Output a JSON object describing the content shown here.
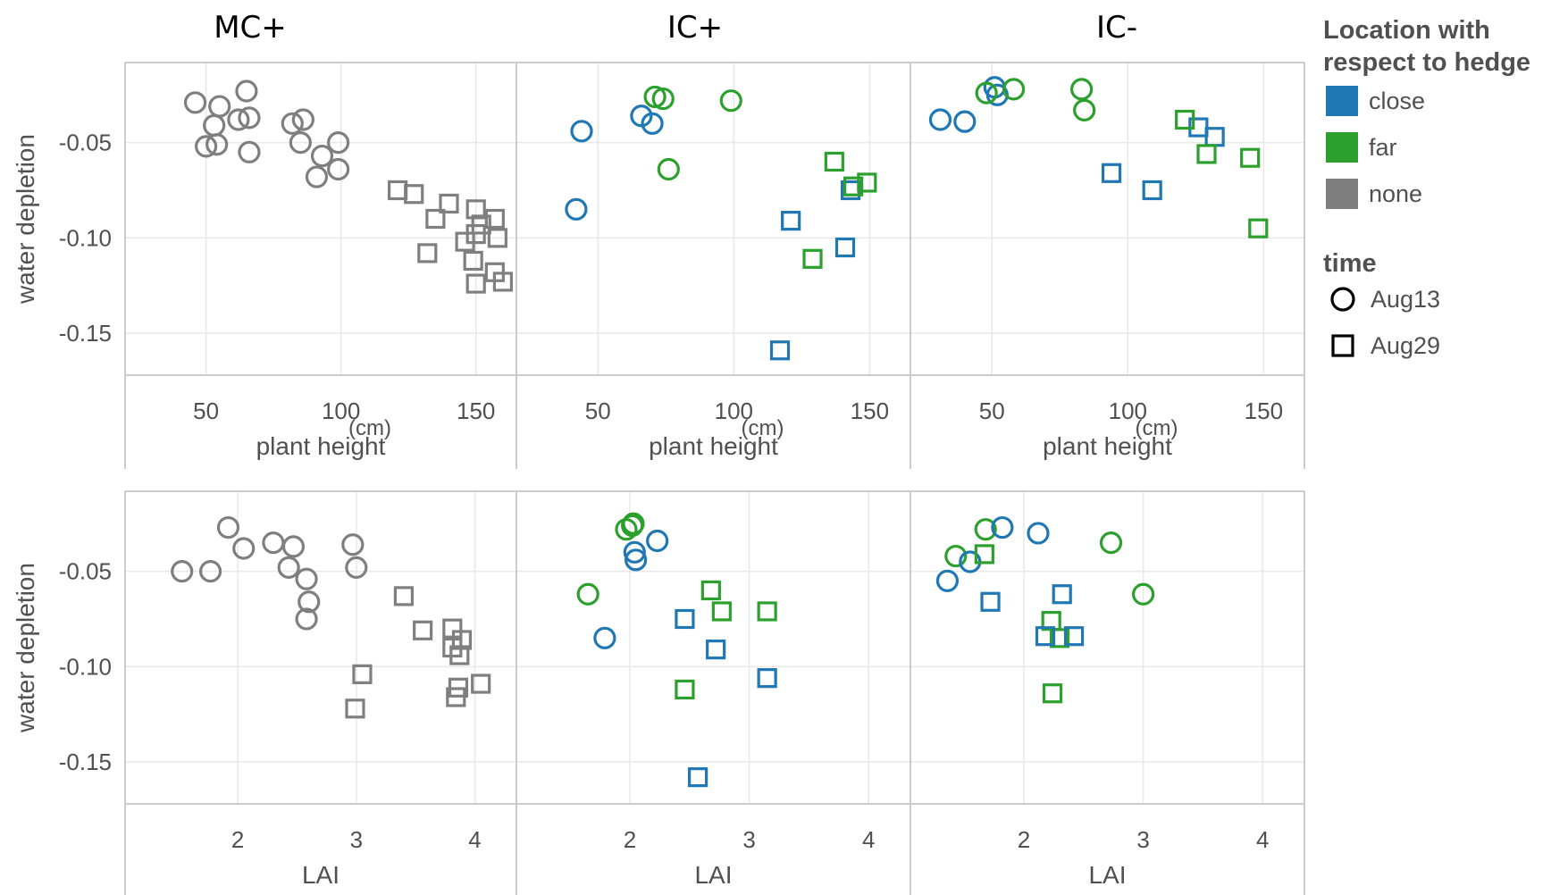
{
  "columns": [
    "MC+",
    "IC+",
    "IC-"
  ],
  "legend": {
    "location_title_line1": "Location with",
    "location_title_line2": "respect to hedge",
    "location_items": [
      {
        "label": "close",
        "color": "#1f77b4"
      },
      {
        "label": "far",
        "color": "#2ca02c"
      },
      {
        "label": "none",
        "color": "#7f7f7f"
      }
    ],
    "time_title": "time",
    "time_items": [
      {
        "label": "Aug13",
        "shape": "circle"
      },
      {
        "label": "Aug29",
        "shape": "square"
      }
    ]
  },
  "chart_data": [
    {
      "type": "scatter",
      "xlabel": "plant height",
      "xunit": "(cm)",
      "ylabel": "water depletion",
      "xlim": [
        20,
        165
      ],
      "ylim": [
        -0.172,
        -0.008
      ],
      "xticks": [
        50,
        100,
        150
      ],
      "yticks": [
        -0.05,
        -0.1,
        -0.15
      ],
      "ytick_labels": [
        "-0.05",
        "-0.10",
        "-0.15"
      ],
      "grid": true,
      "facets": [
        {
          "column": "MC+",
          "points": [
            {
              "x": 46,
              "y": -0.029,
              "loc": "none",
              "time": "Aug13"
            },
            {
              "x": 55,
              "y": -0.031,
              "loc": "none",
              "time": "Aug13"
            },
            {
              "x": 65,
              "y": -0.023,
              "loc": "none",
              "time": "Aug13"
            },
            {
              "x": 62,
              "y": -0.038,
              "loc": "none",
              "time": "Aug13"
            },
            {
              "x": 66,
              "y": -0.037,
              "loc": "none",
              "time": "Aug13"
            },
            {
              "x": 53,
              "y": -0.041,
              "loc": "none",
              "time": "Aug13"
            },
            {
              "x": 50,
              "y": -0.052,
              "loc": "none",
              "time": "Aug13"
            },
            {
              "x": 54,
              "y": -0.051,
              "loc": "none",
              "time": "Aug13"
            },
            {
              "x": 66,
              "y": -0.055,
              "loc": "none",
              "time": "Aug13"
            },
            {
              "x": 82,
              "y": -0.04,
              "loc": "none",
              "time": "Aug13"
            },
            {
              "x": 86,
              "y": -0.038,
              "loc": "none",
              "time": "Aug13"
            },
            {
              "x": 85,
              "y": -0.05,
              "loc": "none",
              "time": "Aug13"
            },
            {
              "x": 93,
              "y": -0.057,
              "loc": "none",
              "time": "Aug13"
            },
            {
              "x": 99,
              "y": -0.05,
              "loc": "none",
              "time": "Aug13"
            },
            {
              "x": 99,
              "y": -0.064,
              "loc": "none",
              "time": "Aug13"
            },
            {
              "x": 91,
              "y": -0.068,
              "loc": "none",
              "time": "Aug13"
            },
            {
              "x": 121,
              "y": -0.075,
              "loc": "none",
              "time": "Aug29"
            },
            {
              "x": 127,
              "y": -0.077,
              "loc": "none",
              "time": "Aug29"
            },
            {
              "x": 140,
              "y": -0.082,
              "loc": "none",
              "time": "Aug29"
            },
            {
              "x": 135,
              "y": -0.09,
              "loc": "none",
              "time": "Aug29"
            },
            {
              "x": 150,
              "y": -0.085,
              "loc": "none",
              "time": "Aug29"
            },
            {
              "x": 152,
              "y": -0.093,
              "loc": "none",
              "time": "Aug29"
            },
            {
              "x": 157,
              "y": -0.09,
              "loc": "none",
              "time": "Aug29"
            },
            {
              "x": 146,
              "y": -0.102,
              "loc": "none",
              "time": "Aug29"
            },
            {
              "x": 150,
              "y": -0.098,
              "loc": "none",
              "time": "Aug29"
            },
            {
              "x": 158,
              "y": -0.1,
              "loc": "none",
              "time": "Aug29"
            },
            {
              "x": 132,
              "y": -0.108,
              "loc": "none",
              "time": "Aug29"
            },
            {
              "x": 149,
              "y": -0.112,
              "loc": "none",
              "time": "Aug29"
            },
            {
              "x": 157,
              "y": -0.118,
              "loc": "none",
              "time": "Aug29"
            },
            {
              "x": 160,
              "y": -0.123,
              "loc": "none",
              "time": "Aug29"
            },
            {
              "x": 150,
              "y": -0.124,
              "loc": "none",
              "time": "Aug29"
            }
          ]
        },
        {
          "column": "IC+",
          "points": [
            {
              "x": 44,
              "y": -0.044,
              "loc": "close",
              "time": "Aug13"
            },
            {
              "x": 42,
              "y": -0.085,
              "loc": "close",
              "time": "Aug13"
            },
            {
              "x": 66,
              "y": -0.036,
              "loc": "close",
              "time": "Aug13"
            },
            {
              "x": 70,
              "y": -0.04,
              "loc": "close",
              "time": "Aug13"
            },
            {
              "x": 71,
              "y": -0.026,
              "loc": "far",
              "time": "Aug13"
            },
            {
              "x": 74,
              "y": -0.027,
              "loc": "far",
              "time": "Aug13"
            },
            {
              "x": 99,
              "y": -0.028,
              "loc": "far",
              "time": "Aug13"
            },
            {
              "x": 76,
              "y": -0.064,
              "loc": "far",
              "time": "Aug13"
            },
            {
              "x": 121,
              "y": -0.091,
              "loc": "close",
              "time": "Aug29"
            },
            {
              "x": 143,
              "y": -0.075,
              "loc": "close",
              "time": "Aug29"
            },
            {
              "x": 141,
              "y": -0.105,
              "loc": "close",
              "time": "Aug29"
            },
            {
              "x": 117,
              "y": -0.159,
              "loc": "close",
              "time": "Aug29"
            },
            {
              "x": 137,
              "y": -0.06,
              "loc": "far",
              "time": "Aug29"
            },
            {
              "x": 144,
              "y": -0.073,
              "loc": "far",
              "time": "Aug29"
            },
            {
              "x": 149,
              "y": -0.071,
              "loc": "far",
              "time": "Aug29"
            },
            {
              "x": 129,
              "y": -0.111,
              "loc": "far",
              "time": "Aug29"
            }
          ]
        },
        {
          "column": "IC-",
          "points": [
            {
              "x": 31,
              "y": -0.038,
              "loc": "close",
              "time": "Aug13"
            },
            {
              "x": 40,
              "y": -0.039,
              "loc": "close",
              "time": "Aug13"
            },
            {
              "x": 51,
              "y": -0.021,
              "loc": "close",
              "time": "Aug13"
            },
            {
              "x": 52,
              "y": -0.025,
              "loc": "close",
              "time": "Aug13"
            },
            {
              "x": 48,
              "y": -0.024,
              "loc": "far",
              "time": "Aug13"
            },
            {
              "x": 58,
              "y": -0.022,
              "loc": "far",
              "time": "Aug13"
            },
            {
              "x": 83,
              "y": -0.022,
              "loc": "far",
              "time": "Aug13"
            },
            {
              "x": 84,
              "y": -0.033,
              "loc": "far",
              "time": "Aug13"
            },
            {
              "x": 126,
              "y": -0.042,
              "loc": "close",
              "time": "Aug29"
            },
            {
              "x": 132,
              "y": -0.047,
              "loc": "close",
              "time": "Aug29"
            },
            {
              "x": 94,
              "y": -0.066,
              "loc": "close",
              "time": "Aug29"
            },
            {
              "x": 109,
              "y": -0.075,
              "loc": "close",
              "time": "Aug29"
            },
            {
              "x": 121,
              "y": -0.038,
              "loc": "far",
              "time": "Aug29"
            },
            {
              "x": 129,
              "y": -0.056,
              "loc": "far",
              "time": "Aug29"
            },
            {
              "x": 145,
              "y": -0.058,
              "loc": "far",
              "time": "Aug29"
            },
            {
              "x": 148,
              "y": -0.095,
              "loc": "far",
              "time": "Aug29"
            }
          ]
        }
      ]
    },
    {
      "type": "scatter",
      "xlabel": "LAI",
      "ylabel": "water depletion",
      "xlim": [
        1.05,
        4.35
      ],
      "ylim": [
        -0.172,
        -0.008
      ],
      "xticks": [
        2,
        3,
        4
      ],
      "yticks": [
        -0.05,
        -0.1,
        -0.15
      ],
      "ytick_labels": [
        "-0.05",
        "-0.10",
        "-0.15"
      ],
      "grid": true,
      "facets": [
        {
          "column": "MC+",
          "points": [
            {
              "x": 1.53,
              "y": -0.05,
              "loc": "none",
              "time": "Aug13"
            },
            {
              "x": 1.77,
              "y": -0.05,
              "loc": "none",
              "time": "Aug13"
            },
            {
              "x": 1.92,
              "y": -0.027,
              "loc": "none",
              "time": "Aug13"
            },
            {
              "x": 2.05,
              "y": -0.038,
              "loc": "none",
              "time": "Aug13"
            },
            {
              "x": 2.3,
              "y": -0.035,
              "loc": "none",
              "time": "Aug13"
            },
            {
              "x": 2.47,
              "y": -0.037,
              "loc": "none",
              "time": "Aug13"
            },
            {
              "x": 2.43,
              "y": -0.048,
              "loc": "none",
              "time": "Aug13"
            },
            {
              "x": 2.58,
              "y": -0.054,
              "loc": "none",
              "time": "Aug13"
            },
            {
              "x": 2.6,
              "y": -0.066,
              "loc": "none",
              "time": "Aug13"
            },
            {
              "x": 2.58,
              "y": -0.075,
              "loc": "none",
              "time": "Aug13"
            },
            {
              "x": 2.97,
              "y": -0.036,
              "loc": "none",
              "time": "Aug13"
            },
            {
              "x": 3.0,
              "y": -0.048,
              "loc": "none",
              "time": "Aug13"
            },
            {
              "x": 3.4,
              "y": -0.063,
              "loc": "none",
              "time": "Aug29"
            },
            {
              "x": 3.56,
              "y": -0.081,
              "loc": "none",
              "time": "Aug29"
            },
            {
              "x": 3.81,
              "y": -0.08,
              "loc": "none",
              "time": "Aug29"
            },
            {
              "x": 3.89,
              "y": -0.086,
              "loc": "none",
              "time": "Aug29"
            },
            {
              "x": 3.81,
              "y": -0.09,
              "loc": "none",
              "time": "Aug29"
            },
            {
              "x": 3.87,
              "y": -0.094,
              "loc": "none",
              "time": "Aug29"
            },
            {
              "x": 3.05,
              "y": -0.104,
              "loc": "none",
              "time": "Aug29"
            },
            {
              "x": 2.99,
              "y": -0.122,
              "loc": "none",
              "time": "Aug29"
            },
            {
              "x": 4.05,
              "y": -0.109,
              "loc": "none",
              "time": "Aug29"
            },
            {
              "x": 3.86,
              "y": -0.111,
              "loc": "none",
              "time": "Aug29"
            },
            {
              "x": 3.84,
              "y": -0.116,
              "loc": "none",
              "time": "Aug29"
            }
          ]
        },
        {
          "column": "IC+",
          "points": [
            {
              "x": 1.97,
              "y": -0.028,
              "loc": "far",
              "time": "Aug13"
            },
            {
              "x": 2.02,
              "y": -0.026,
              "loc": "far",
              "time": "Aug13"
            },
            {
              "x": 2.03,
              "y": -0.025,
              "loc": "far",
              "time": "Aug13"
            },
            {
              "x": 1.65,
              "y": -0.062,
              "loc": "far",
              "time": "Aug13"
            },
            {
              "x": 2.04,
              "y": -0.04,
              "loc": "close",
              "time": "Aug13"
            },
            {
              "x": 2.05,
              "y": -0.044,
              "loc": "close",
              "time": "Aug13"
            },
            {
              "x": 2.23,
              "y": -0.034,
              "loc": "close",
              "time": "Aug13"
            },
            {
              "x": 1.79,
              "y": -0.085,
              "loc": "close",
              "time": "Aug13"
            },
            {
              "x": 2.68,
              "y": -0.06,
              "loc": "far",
              "time": "Aug29"
            },
            {
              "x": 2.77,
              "y": -0.071,
              "loc": "far",
              "time": "Aug29"
            },
            {
              "x": 3.15,
              "y": -0.071,
              "loc": "far",
              "time": "Aug29"
            },
            {
              "x": 2.46,
              "y": -0.112,
              "loc": "far",
              "time": "Aug29"
            },
            {
              "x": 2.46,
              "y": -0.075,
              "loc": "close",
              "time": "Aug29"
            },
            {
              "x": 2.72,
              "y": -0.091,
              "loc": "close",
              "time": "Aug29"
            },
            {
              "x": 3.15,
              "y": -0.106,
              "loc": "close",
              "time": "Aug29"
            },
            {
              "x": 2.57,
              "y": -0.158,
              "loc": "close",
              "time": "Aug29"
            }
          ]
        },
        {
          "column": "IC-",
          "points": [
            {
              "x": 1.43,
              "y": -0.042,
              "loc": "far",
              "time": "Aug13"
            },
            {
              "x": 1.68,
              "y": -0.028,
              "loc": "far",
              "time": "Aug13"
            },
            {
              "x": 2.73,
              "y": -0.035,
              "loc": "far",
              "time": "Aug13"
            },
            {
              "x": 3.0,
              "y": -0.062,
              "loc": "far",
              "time": "Aug13"
            },
            {
              "x": 1.55,
              "y": -0.045,
              "loc": "close",
              "time": "Aug13"
            },
            {
              "x": 1.36,
              "y": -0.055,
              "loc": "close",
              "time": "Aug13"
            },
            {
              "x": 1.82,
              "y": -0.027,
              "loc": "close",
              "time": "Aug13"
            },
            {
              "x": 2.12,
              "y": -0.03,
              "loc": "close",
              "time": "Aug13"
            },
            {
              "x": 1.67,
              "y": -0.041,
              "loc": "far",
              "time": "Aug29"
            },
            {
              "x": 2.23,
              "y": -0.076,
              "loc": "far",
              "time": "Aug29"
            },
            {
              "x": 2.3,
              "y": -0.085,
              "loc": "far",
              "time": "Aug29"
            },
            {
              "x": 2.24,
              "y": -0.114,
              "loc": "far",
              "time": "Aug29"
            },
            {
              "x": 1.72,
              "y": -0.066,
              "loc": "close",
              "time": "Aug29"
            },
            {
              "x": 2.32,
              "y": -0.062,
              "loc": "close",
              "time": "Aug29"
            },
            {
              "x": 2.18,
              "y": -0.084,
              "loc": "close",
              "time": "Aug29"
            },
            {
              "x": 2.42,
              "y": -0.084,
              "loc": "close",
              "time": "Aug29"
            }
          ]
        }
      ]
    }
  ]
}
